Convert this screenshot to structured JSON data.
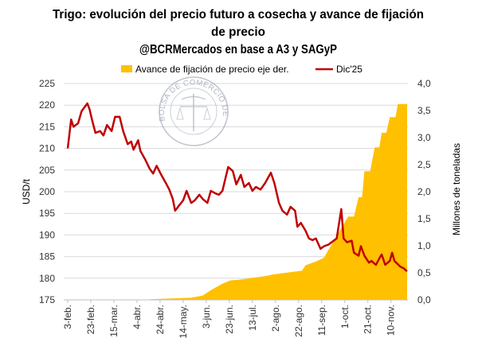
{
  "chart_data": {
    "type": "line+area",
    "title": "Trigo: evolución del precio futuro a cosecha y avance de fijación de precio",
    "title_lines": [
      "Trigo: evolución del precio futuro a cosecha y avance de fijación",
      "de precio"
    ],
    "subtitle": "@BCRMercados en base a A3 y SAGyP",
    "ylabel": "USD/t",
    "y2label": "Millones de toneladas",
    "ylim": [
      175,
      225
    ],
    "y2lim": [
      0,
      4
    ],
    "yticks": [
      "225",
      "220",
      "215",
      "210",
      "205",
      "200",
      "195",
      "190",
      "185",
      "180",
      "175"
    ],
    "y2ticks": [
      "4,0",
      "3,5",
      "3,0",
      "2,5",
      "2,0",
      "1,5",
      "1,0",
      "0,5",
      "0,0"
    ],
    "xticks": [
      "3-feb.",
      "23-feb.",
      "15-mar.",
      "4-abr.",
      "24-abr.",
      "14-may.",
      "3-jun.",
      "23-jun.",
      "13-jul.",
      "2-ago.",
      "22-ago.",
      "11-sep.",
      "1-oct.",
      "21-oct.",
      "10-nov."
    ],
    "xtick_dates": [
      "2025-02-03",
      "2025-02-23",
      "2025-03-15",
      "2025-04-04",
      "2025-04-24",
      "2025-05-14",
      "2025-06-03",
      "2025-06-23",
      "2025-07-13",
      "2025-08-02",
      "2025-08-22",
      "2025-09-11",
      "2025-10-01",
      "2025-10-21",
      "2025-11-10"
    ],
    "grid": true,
    "legend_position": "top",
    "series": [
      {
        "name": "Avance de fijación de precio eje der.",
        "type": "area",
        "axis": "right",
        "color": "#FFC000",
        "points": [
          [
            "2025-04-15",
            0.01
          ],
          [
            "2025-05-21",
            0.04
          ],
          [
            "2025-05-31",
            0.08
          ],
          [
            "2025-06-07",
            0.18
          ],
          [
            "2025-06-17",
            0.3
          ],
          [
            "2025-06-24",
            0.36
          ],
          [
            "2025-07-01",
            0.37
          ],
          [
            "2025-07-24",
            0.44
          ],
          [
            "2025-07-31",
            0.47
          ],
          [
            "2025-08-25",
            0.54
          ],
          [
            "2025-08-28",
            0.64
          ],
          [
            "2025-09-06",
            0.71
          ],
          [
            "2025-09-13",
            0.78
          ],
          [
            "2025-09-17",
            0.93
          ],
          [
            "2025-09-30",
            1.4
          ],
          [
            "2025-10-04",
            1.54
          ],
          [
            "2025-10-09",
            1.54
          ],
          [
            "2025-10-13",
            1.9
          ],
          [
            "2025-10-16",
            1.9
          ],
          [
            "2025-10-18",
            2.38
          ],
          [
            "2025-10-23",
            2.38
          ],
          [
            "2025-10-27",
            2.82
          ],
          [
            "2025-10-31",
            2.82
          ],
          [
            "2025-11-02",
            3.09
          ],
          [
            "2025-11-06",
            3.09
          ],
          [
            "2025-11-09",
            3.38
          ],
          [
            "2025-11-14",
            3.38
          ],
          [
            "2025-11-16",
            3.62
          ],
          [
            "2025-11-24",
            3.62
          ]
        ]
      },
      {
        "name": "Dic'25",
        "type": "line",
        "axis": "left",
        "color": "#C00000",
        "points": [
          [
            "2025-02-03",
            210
          ],
          [
            "2025-02-06",
            216.7
          ],
          [
            "2025-02-08",
            215
          ],
          [
            "2025-02-12",
            215.8
          ],
          [
            "2025-02-15",
            218.6
          ],
          [
            "2025-02-20",
            220.4
          ],
          [
            "2025-02-22",
            219
          ],
          [
            "2025-02-24",
            216.7
          ],
          [
            "2025-02-27",
            213.6
          ],
          [
            "2025-03-03",
            214
          ],
          [
            "2025-03-06",
            213
          ],
          [
            "2025-03-09",
            215.4
          ],
          [
            "2025-03-13",
            214
          ],
          [
            "2025-03-16",
            217.3
          ],
          [
            "2025-03-20",
            217.3
          ],
          [
            "2025-03-23",
            214
          ],
          [
            "2025-03-27",
            211
          ],
          [
            "2025-03-30",
            211.6
          ],
          [
            "2025-04-01",
            209.7
          ],
          [
            "2025-04-05",
            211.9
          ],
          [
            "2025-04-07",
            209.4
          ],
          [
            "2025-04-11",
            207.5
          ],
          [
            "2025-04-15",
            205.3
          ],
          [
            "2025-04-18",
            204.2
          ],
          [
            "2025-04-21",
            206
          ],
          [
            "2025-04-25",
            203.9
          ],
          [
            "2025-04-29",
            202
          ],
          [
            "2025-05-02",
            200.5
          ],
          [
            "2025-05-05",
            198.3
          ],
          [
            "2025-05-07",
            195.6
          ],
          [
            "2025-05-11",
            197
          ],
          [
            "2025-05-14",
            198
          ],
          [
            "2025-05-17",
            200.2
          ],
          [
            "2025-05-21",
            197.4
          ],
          [
            "2025-05-24",
            198
          ],
          [
            "2025-05-28",
            199.3
          ],
          [
            "2025-05-31",
            198.3
          ],
          [
            "2025-06-04",
            197.4
          ],
          [
            "2025-06-07",
            200.2
          ],
          [
            "2025-06-11",
            199.6
          ],
          [
            "2025-06-14",
            199.3
          ],
          [
            "2025-06-17",
            200.2
          ],
          [
            "2025-06-22",
            205.7
          ],
          [
            "2025-06-26",
            204.8
          ],
          [
            "2025-06-29",
            201.7
          ],
          [
            "2025-07-03",
            203.9
          ],
          [
            "2025-07-06",
            201.1
          ],
          [
            "2025-07-10",
            202
          ],
          [
            "2025-07-13",
            200.2
          ],
          [
            "2025-07-16",
            201.1
          ],
          [
            "2025-07-20",
            200.5
          ],
          [
            "2025-07-24",
            202
          ],
          [
            "2025-07-29",
            204.4
          ],
          [
            "2025-08-01",
            202
          ],
          [
            "2025-08-05",
            197.4
          ],
          [
            "2025-08-08",
            195.6
          ],
          [
            "2025-08-12",
            194.7
          ],
          [
            "2025-08-15",
            196.5
          ],
          [
            "2025-08-19",
            195.6
          ],
          [
            "2025-08-21",
            191.9
          ],
          [
            "2025-08-24",
            192.8
          ],
          [
            "2025-08-28",
            191
          ],
          [
            "2025-08-31",
            189.2
          ],
          [
            "2025-09-03",
            188.8
          ],
          [
            "2025-09-06",
            189.2
          ],
          [
            "2025-09-10",
            186.8
          ],
          [
            "2025-09-13",
            187.4
          ],
          [
            "2025-09-17",
            187.8
          ],
          [
            "2025-09-20",
            188.4
          ],
          [
            "2025-09-24",
            189.2
          ],
          [
            "2025-09-28",
            196
          ],
          [
            "2025-09-30",
            189.2
          ],
          [
            "2025-10-03",
            188.3
          ],
          [
            "2025-10-07",
            188.7
          ],
          [
            "2025-10-09",
            185.9
          ],
          [
            "2025-10-13",
            185.2
          ],
          [
            "2025-10-15",
            187.4
          ],
          [
            "2025-10-18",
            185.2
          ],
          [
            "2025-10-22",
            183.6
          ],
          [
            "2025-10-24",
            184
          ],
          [
            "2025-10-28",
            183.1
          ],
          [
            "2025-10-31",
            184.6
          ],
          [
            "2025-11-02",
            185.5
          ],
          [
            "2025-11-05",
            183.1
          ],
          [
            "2025-11-09",
            184
          ],
          [
            "2025-11-11",
            185.9
          ],
          [
            "2025-11-13",
            184
          ],
          [
            "2025-11-18",
            182.7
          ],
          [
            "2025-11-21",
            182.3
          ],
          [
            "2025-11-24",
            181.6
          ]
        ]
      }
    ]
  },
  "watermark": {
    "text": "BOLSA DE COMERCIO DE ROSARIO"
  }
}
